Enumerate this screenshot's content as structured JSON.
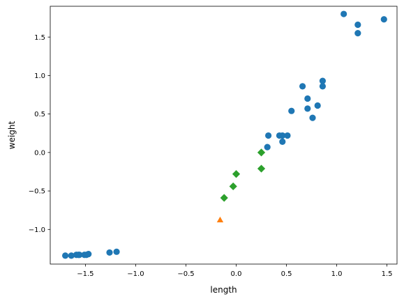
{
  "chart_data": {
    "type": "scatter",
    "title": "",
    "xlabel": "length",
    "ylabel": "weight",
    "xlim": [
      -1.85,
      1.6
    ],
    "ylim": [
      -1.45,
      1.9
    ],
    "xticks": [
      -1.5,
      -1.0,
      -0.5,
      0.0,
      0.5,
      1.0,
      1.5
    ],
    "xtick_labels": [
      "−1.5",
      "−1.0",
      "−0.5",
      "0.0",
      "0.5",
      "1.0",
      "1.5"
    ],
    "yticks": [
      -1.0,
      -0.5,
      0.0,
      0.5,
      1.0,
      1.5
    ],
    "ytick_labels": [
      "−1.0",
      "−0.5",
      "0.0",
      "0.5",
      "1.0",
      "1.5"
    ],
    "grid": false,
    "legend": "none",
    "series": [
      {
        "marker": "circle",
        "color": "#1f77b4",
        "points": [
          [
            -1.7,
            -1.34
          ],
          [
            -1.64,
            -1.34
          ],
          [
            -1.59,
            -1.33
          ],
          [
            -1.57,
            -1.33
          ],
          [
            -1.56,
            -1.33
          ],
          [
            -1.51,
            -1.33
          ],
          [
            -1.49,
            -1.33
          ],
          [
            -1.47,
            -1.32
          ],
          [
            -1.26,
            -1.3
          ],
          [
            -1.19,
            -1.29
          ],
          [
            0.32,
            0.22
          ],
          [
            0.31,
            0.07
          ],
          [
            0.43,
            0.22
          ],
          [
            0.46,
            0.22
          ],
          [
            0.51,
            0.22
          ],
          [
            0.46,
            0.14
          ],
          [
            0.55,
            0.54
          ],
          [
            0.66,
            0.86
          ],
          [
            0.71,
            0.7
          ],
          [
            0.71,
            0.57
          ],
          [
            0.76,
            0.45
          ],
          [
            0.81,
            0.61
          ],
          [
            0.86,
            0.93
          ],
          [
            0.86,
            0.86
          ],
          [
            1.07,
            1.8
          ],
          [
            1.21,
            1.66
          ],
          [
            1.21,
            1.55
          ],
          [
            1.47,
            1.73
          ]
        ]
      },
      {
        "marker": "triangle",
        "color": "#ff7f0e",
        "points": [
          [
            -0.16,
            -0.88
          ]
        ]
      },
      {
        "marker": "diamond",
        "color": "#2ca02c",
        "points": [
          [
            -0.12,
            -0.59
          ],
          [
            -0.03,
            -0.44
          ],
          [
            0.0,
            -0.28
          ],
          [
            0.25,
            -0.21
          ],
          [
            0.25,
            0.0
          ]
        ]
      }
    ]
  }
}
